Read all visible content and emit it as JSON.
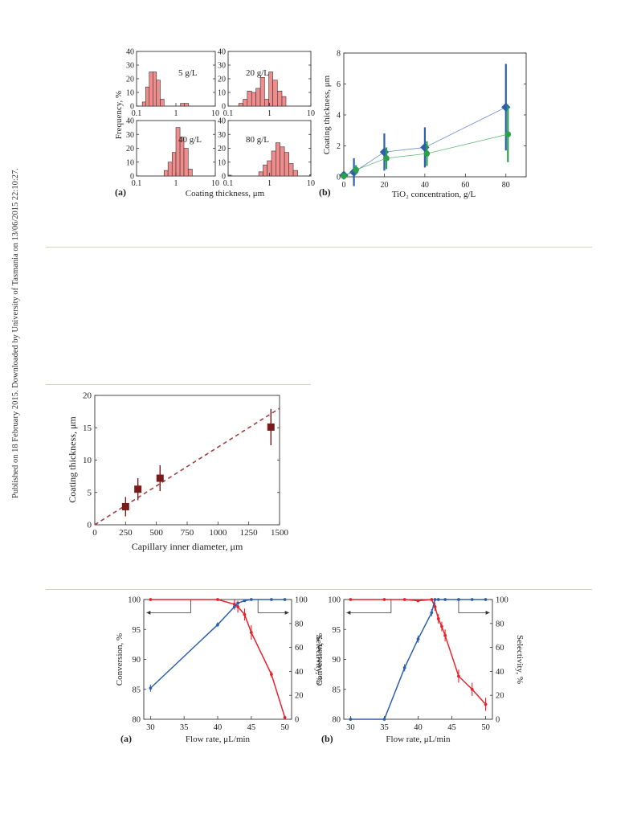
{
  "sidebar": {
    "text": "Published on 18 February 2015. Downloaded by University of Tasmania on 13/06/2015 22:10:27."
  },
  "colors": {
    "rule": "#cfd6c0",
    "hist_fill": "#f08c8c",
    "blue": "#2d5fae",
    "green": "#2aa04a",
    "dark_red": "#7a1a1a",
    "red": "#e8222a"
  },
  "chart_data": [
    {
      "id": "fig1a",
      "type": "bar",
      "panel_label": "(a)",
      "xlabel": "Coating thickness, μm",
      "ylabel": "Frequency, %",
      "x_scale": "log",
      "xlim": [
        0.1,
        10
      ],
      "ylim": [
        0,
        40
      ],
      "x_ticks": [
        "0.1",
        "1",
        "10"
      ],
      "y_ticks": [
        "0",
        "10",
        "20",
        "30",
        "40"
      ],
      "subplots": [
        {
          "label": "5 g/L",
          "bins": [
            [
              0.14,
              0.17,
              3
            ],
            [
              0.17,
              0.21,
              14
            ],
            [
              0.21,
              0.26,
              25
            ],
            [
              0.26,
              0.32,
              25
            ],
            [
              0.32,
              0.4,
              19
            ],
            [
              0.4,
              0.5,
              5
            ],
            [
              1.3,
              1.65,
              2
            ],
            [
              1.65,
              2.1,
              2
            ]
          ]
        },
        {
          "label": "20 g/L",
          "bins": [
            [
              0.18,
              0.23,
              2
            ],
            [
              0.23,
              0.29,
              5
            ],
            [
              0.29,
              0.37,
              11
            ],
            [
              0.37,
              0.47,
              10
            ],
            [
              0.47,
              0.6,
              13
            ],
            [
              0.6,
              0.76,
              21
            ],
            [
              0.76,
              0.96,
              5
            ],
            [
              0.96,
              1.2,
              25
            ],
            [
              1.2,
              1.55,
              19
            ],
            [
              1.55,
              2.0,
              11
            ],
            [
              2.0,
              2.5,
              7
            ]
          ]
        },
        {
          "label": "40 g/L",
          "bins": [
            [
              0.5,
              0.63,
              4
            ],
            [
              0.63,
              0.8,
              10
            ],
            [
              0.8,
              1.0,
              17
            ],
            [
              1.0,
              1.27,
              35
            ],
            [
              1.27,
              1.6,
              28
            ],
            [
              1.6,
              2.05,
              20
            ],
            [
              2.05,
              2.6,
              5
            ]
          ]
        },
        {
          "label": "80 g/L",
          "bins": [
            [
              0.1,
              0.12,
              0.6
            ],
            [
              0.55,
              0.7,
              3
            ],
            [
              0.7,
              0.88,
              8
            ],
            [
              0.88,
              1.12,
              11
            ],
            [
              1.12,
              1.42,
              18
            ],
            [
              1.42,
              1.8,
              24
            ],
            [
              1.8,
              2.3,
              21
            ],
            [
              2.3,
              2.95,
              17
            ],
            [
              2.95,
              3.75,
              9
            ],
            [
              3.75,
              4.8,
              4
            ],
            [
              9.3,
              10,
              1
            ]
          ]
        }
      ]
    },
    {
      "id": "fig1b",
      "type": "scatter",
      "panel_label": "(b)",
      "xlabel": "TiO₂ concentration, g/L",
      "ylabel": "Coating thickness, μm",
      "xlim": [
        0,
        90
      ],
      "ylim": [
        0,
        8
      ],
      "x_ticks": [
        "0",
        "20",
        "40",
        "60",
        "80"
      ],
      "y_ticks": [
        "0",
        "2",
        "4",
        "6",
        "8"
      ],
      "series": [
        {
          "name": "",
          "color": "#2d5fae",
          "x": [
            0,
            5,
            20,
            40,
            80
          ],
          "y": [
            0.1,
            0.3,
            1.6,
            1.9,
            4.5
          ],
          "err": [
            0.05,
            0.9,
            1.2,
            1.3,
            2.8
          ]
        },
        {
          "name": "",
          "color": "#2aa04a",
          "x": [
            0,
            6,
            21,
            41,
            81
          ],
          "y": [
            0.05,
            0.45,
            1.2,
            1.5,
            2.75
          ],
          "err": [
            0.05,
            0.3,
            0.7,
            0.8,
            1.8
          ]
        }
      ]
    },
    {
      "id": "fig2",
      "type": "scatter",
      "xlabel": "Capillary inner diameter, μm",
      "ylabel": "Coating thickness, μm",
      "xlim": [
        0,
        1500
      ],
      "ylim": [
        0,
        20
      ],
      "x_ticks": [
        "0",
        "250",
        "500",
        "750",
        "1000",
        "1250",
        "1500"
      ],
      "y_ticks": [
        "0",
        "5",
        "10",
        "15",
        "20"
      ],
      "points": {
        "x": [
          250,
          350,
          530,
          1430
        ],
        "y": [
          2.8,
          5.5,
          7.2,
          15.1
        ],
        "err": [
          1.5,
          1.7,
          2.0,
          2.8
        ]
      },
      "fit_line": {
        "x": [
          0,
          1500
        ],
        "y": [
          0,
          18
        ]
      }
    },
    {
      "id": "fig3a",
      "type": "line",
      "panel_label": "(a)",
      "xlabel": "Flow rate, μL/min",
      "ylabel_left": "Conversion, %",
      "ylabel_right": "Selectivity, %",
      "xlim": [
        29,
        51
      ],
      "ylim_left": [
        80,
        100
      ],
      "ylim_right": [
        0,
        100
      ],
      "x_ticks": [
        "30",
        "35",
        "40",
        "45",
        "50"
      ],
      "y_ticks_left": [
        "80",
        "85",
        "90",
        "95",
        "100"
      ],
      "y_ticks_right": [
        "0",
        "20",
        "40",
        "60",
        "80",
        "100"
      ],
      "series": [
        {
          "name": "",
          "axis": "left",
          "color": "#e8222a",
          "x": [
            30,
            40,
            42.5,
            43,
            44,
            45,
            48,
            50
          ],
          "y": [
            100,
            100,
            99.2,
            98.8,
            97.5,
            94.5,
            87.5,
            80.3
          ],
          "err": [
            0,
            0,
            0.9,
            1.0,
            1.0,
            1.2,
            0.5,
            0.3
          ]
        },
        {
          "name": "",
          "axis": "right",
          "color": "#2d5fae",
          "x": [
            30,
            40,
            42.5,
            43,
            44,
            45,
            48,
            50
          ],
          "y": [
            26,
            79,
            94,
            97,
            99,
            100,
            100,
            100
          ],
          "err": [
            3,
            2,
            1,
            0.5,
            0.5,
            0,
            0,
            0
          ]
        }
      ]
    },
    {
      "id": "fig3b",
      "type": "line",
      "panel_label": "(b)",
      "xlabel": "Flow rate, μL/min",
      "ylabel_left": "Conversion, %",
      "ylabel_right": "Selectivity, %",
      "xlim": [
        29,
        51
      ],
      "ylim_left": [
        80,
        100
      ],
      "ylim_right": [
        0,
        100
      ],
      "x_ticks": [
        "30",
        "35",
        "40",
        "45",
        "50"
      ],
      "y_ticks_left": [
        "80",
        "85",
        "90",
        "95",
        "100"
      ],
      "y_ticks_right": [
        "0",
        "20",
        "40",
        "60",
        "80",
        "100"
      ],
      "series": [
        {
          "name": "",
          "axis": "left",
          "color": "#e8222a",
          "x": [
            30,
            35,
            38,
            40,
            42,
            42.5,
            43,
            43.5,
            44,
            46,
            48,
            50
          ],
          "y": [
            100,
            100,
            100,
            99.8,
            100,
            98.8,
            96.8,
            95.5,
            94,
            87.2,
            85,
            82.5
          ],
          "err": [
            0,
            0,
            0,
            0,
            0,
            0.7,
            0.8,
            0.8,
            1.0,
            1.1,
            1.1,
            1.1
          ]
        },
        {
          "name": "",
          "axis": "right",
          "color": "#2d5fae",
          "x": [
            30,
            35,
            38,
            40,
            42,
            42.5,
            43,
            44,
            46,
            48,
            50
          ],
          "y": [
            0,
            0,
            43,
            67,
            89,
            100,
            100,
            100,
            100,
            100,
            100
          ],
          "err": [
            0,
            0,
            3,
            3,
            3,
            0.5,
            0,
            0,
            0,
            0,
            0
          ]
        }
      ]
    }
  ]
}
